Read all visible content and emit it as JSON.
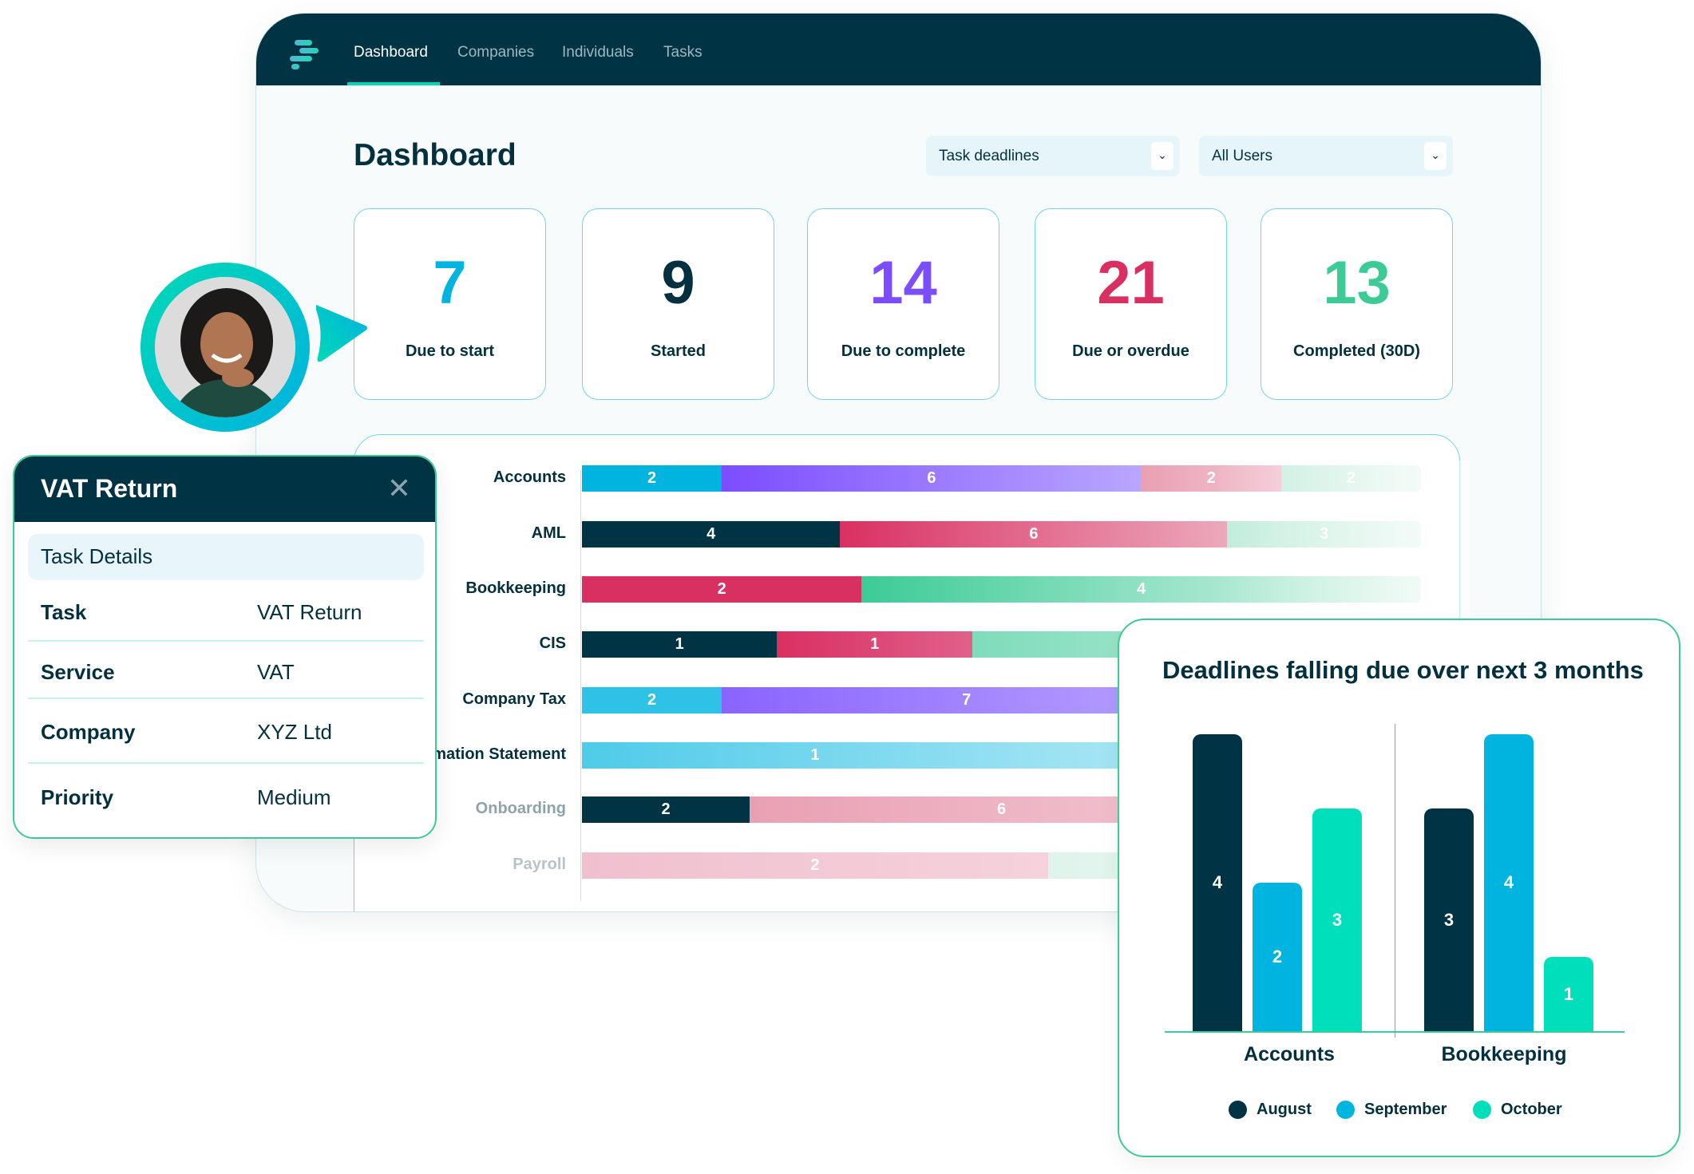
{
  "nav": {
    "tabs": [
      "Dashboard",
      "Companies",
      "Individuals",
      "Tasks"
    ],
    "active": "Dashboard"
  },
  "header": {
    "title": "Dashboard",
    "filters": [
      {
        "selected": "Task deadlines"
      },
      {
        "selected": "All Users"
      }
    ]
  },
  "stats": [
    {
      "value": "7",
      "label": "Due to start",
      "color": "#00b4e0"
    },
    {
      "value": "9",
      "label": "Started",
      "color": "#03303f"
    },
    {
      "value": "14",
      "label": "Due to complete",
      "color": "#7c4dff"
    },
    {
      "value": "21",
      "label": "Due or overdue",
      "color": "#d93062"
    },
    {
      "value": "13",
      "label": "Completed (30D)",
      "color": "#3ccb96"
    }
  ],
  "task_rows": [
    {
      "label": "Accounts",
      "segments": [
        {
          "v": 2,
          "c": "#00b4e0"
        },
        {
          "v": 6,
          "c": "linear-gradient(90deg,#7c4dff,#b9a6ff)"
        },
        {
          "v": 2,
          "c": "linear-gradient(90deg,#e9a0b3,#f3c6d2)"
        },
        {
          "v": 2,
          "c": "linear-gradient(90deg,#c9eedf,#eaf8f2)"
        }
      ]
    },
    {
      "label": "AML",
      "segments": [
        {
          "v": 4,
          "c": "#003343"
        },
        {
          "v": 6,
          "c": "linear-gradient(90deg,#d93062,#eca8bb)"
        },
        {
          "v": 3,
          "c": "linear-gradient(90deg,#bfecda,#e8f8f1)"
        }
      ]
    },
    {
      "label": "Bookkeeping",
      "segments": [
        {
          "v": 2,
          "c": "#d93062"
        },
        {
          "v": 4,
          "c": "linear-gradient(90deg,#3ccb96,#e4f7ef)"
        }
      ]
    },
    {
      "label": "CIS",
      "segments": [
        {
          "v": 1,
          "c": "#003343"
        },
        {
          "v": 1,
          "c": "linear-gradient(90deg,#d93062,#e0608a)"
        }
      ]
    },
    {
      "label": "Company Tax",
      "segments": [
        {
          "v": 2,
          "c": "#2ec2e6"
        },
        {
          "v": 7,
          "c": "linear-gradient(90deg,#8a63ff,#b9a6ff)"
        }
      ]
    },
    {
      "label": "Confirmation Statement",
      "segments": [
        {
          "v": 1,
          "c": "linear-gradient(90deg,#4fcbe9,#9be2f3)"
        }
      ]
    },
    {
      "label": "Onboarding",
      "segments": [
        {
          "v": 2,
          "c": "#003343"
        },
        {
          "v": 6,
          "c": "linear-gradient(90deg,#e9a0b3,#f3c8d4)"
        }
      ]
    },
    {
      "label": "Payroll",
      "segments": [
        {
          "v": 2,
          "c": "linear-gradient(90deg,#f0c0cf,#f5d2dc)"
        }
      ]
    }
  ],
  "popup": {
    "title": "VAT Return",
    "section": "Task Details",
    "rows": [
      {
        "key": "Task",
        "value": "VAT Return"
      },
      {
        "key": "Service",
        "value": "VAT"
      },
      {
        "key": "Company",
        "value": "XYZ Ltd"
      },
      {
        "key": "Priority",
        "value": "Medium"
      }
    ]
  },
  "chart_data": {
    "type": "bar",
    "title": "Deadlines falling due over next 3 months",
    "categories": [
      "Accounts",
      "Bookkeeping"
    ],
    "series": [
      {
        "name": "August",
        "color": "#003343",
        "values": [
          4,
          3
        ]
      },
      {
        "name": "September",
        "color": "#00b4e0",
        "values": [
          2,
          4
        ]
      },
      {
        "name": "October",
        "color": "#00dfbb",
        "values": [
          3,
          1
        ]
      }
    ],
    "ylim": [
      0,
      4
    ],
    "legend": "bottom",
    "grid": false
  }
}
